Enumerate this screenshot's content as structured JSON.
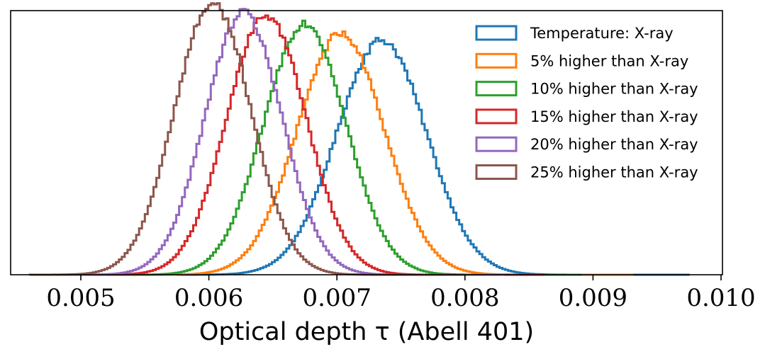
{
  "chart_data": {
    "type": "histogram",
    "title": "",
    "xlabel": "Optical depth τ (Abell 401)",
    "ylabel": "",
    "xlim": [
      0.00455,
      0.01005
    ],
    "ylim": [
      0,
      1.08
    ],
    "x_ticks": [
      0.005,
      0.006,
      0.007,
      0.008,
      0.009,
      0.01
    ],
    "x_tick_labels": [
      "0.005",
      "0.006",
      "0.007",
      "0.008",
      "0.009",
      "0.010"
    ],
    "y_ticks_visible": false,
    "grid": false,
    "legend_position": "top-right",
    "bin_width": 2.25e-05,
    "series": [
      {
        "name": "Temperature: X-ray",
        "color": "#1f77b4",
        "mean": 0.00735,
        "sd": 0.00035,
        "peak": 0.96,
        "range": [
          0.00575,
          0.00975
        ]
      },
      {
        "name": "5% higher than X-ray",
        "color": "#ff7f0e",
        "mean": 0.00703,
        "sd": 0.00034,
        "peak": 0.985,
        "range": [
          0.0054,
          0.0093
        ]
      },
      {
        "name": "10% higher than X-ray",
        "color": "#2ca02c",
        "mean": 0.00675,
        "sd": 0.00032,
        "peak": 1.03,
        "range": [
          0.0052,
          0.0089
        ]
      },
      {
        "name": "15% higher than X-ray",
        "color": "#d62728",
        "mean": 0.00645,
        "sd": 0.00031,
        "peak": 1.06,
        "range": [
          0.005,
          0.0086
        ]
      },
      {
        "name": "20% higher than X-ray",
        "color": "#9467bd",
        "mean": 0.00627,
        "sd": 0.0003,
        "peak": 1.07,
        "range": [
          0.0048,
          0.0083
        ]
      },
      {
        "name": "25% higher than X-ray",
        "color": "#8c564b",
        "mean": 0.00603,
        "sd": 0.0003,
        "peak": 1.11,
        "range": [
          0.0046,
          0.008
        ]
      }
    ]
  }
}
